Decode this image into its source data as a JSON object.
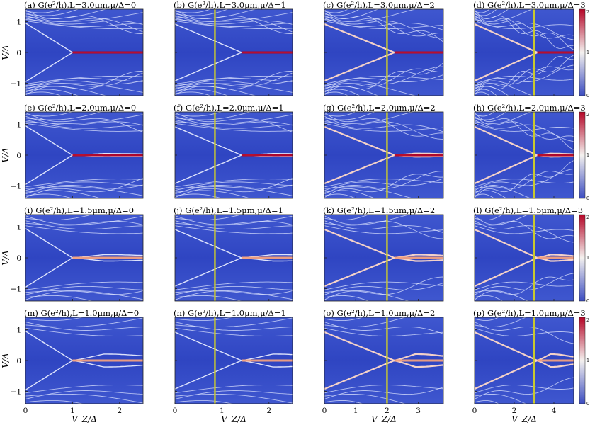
{
  "figure": {
    "ylabel": "V/Δ",
    "xlabel": "V_Z/Δ",
    "colors": {
      "low": "#3b4cc0",
      "mid": "#f4f1ef",
      "high": "#b40426",
      "marker": "#c8c830"
    }
  },
  "chart_data": [
    {
      "type": "heatmap",
      "title": "(a) G(e²/h),L=3.0μm,μ/Δ=0",
      "L_um": 3.0,
      "mu": 0,
      "xlim": [
        0,
        2.5
      ],
      "ylim": [
        -1.4,
        1.4
      ],
      "xticks": [
        0,
        1,
        2
      ],
      "yticks": [
        -1,
        0,
        1
      ],
      "marker_vz": null,
      "colorbar": null
    },
    {
      "type": "heatmap",
      "title": "(b) G(e²/h),L=3.0μm,μ/Δ=1",
      "L_um": 3.0,
      "mu": 1,
      "xlim": [
        0,
        2.5
      ],
      "ylim": [
        -1.4,
        1.4
      ],
      "xticks": [
        0,
        1,
        2
      ],
      "yticks": [
        -1,
        0,
        1
      ],
      "marker_vz": 0.85,
      "colorbar": null
    },
    {
      "type": "heatmap",
      "title": "(c) G(e²/h),L=3.0μm,μ/Δ=2",
      "L_um": 3.0,
      "mu": 2,
      "xlim": [
        0,
        3.8
      ],
      "ylim": [
        -1.4,
        1.4
      ],
      "xticks": [
        0,
        1,
        2,
        3
      ],
      "yticks": [
        -1,
        0,
        1
      ],
      "marker_vz": 2.0,
      "colorbar": null
    },
    {
      "type": "heatmap",
      "title": "(d) G(e²/h),L=3.0μm,μ/Δ=3",
      "L_um": 3.0,
      "mu": 3,
      "xlim": [
        0,
        5
      ],
      "ylim": [
        -1.4,
        1.4
      ],
      "xticks": [
        0,
        2,
        4
      ],
      "yticks": [
        -1,
        0,
        1
      ],
      "marker_vz": 3.0,
      "colorbar": {
        "range": [
          0,
          2
        ],
        "ticks": [
          "0",
          "1",
          "2"
        ]
      }
    },
    {
      "type": "heatmap",
      "title": "(e) G(e²/h),L=2.0μm,μ/Δ=0",
      "L_um": 2.0,
      "mu": 0,
      "xlim": [
        0,
        2.5
      ],
      "ylim": [
        -1.4,
        1.4
      ],
      "xticks": [
        0,
        1,
        2
      ],
      "yticks": [
        -1,
        0,
        1
      ],
      "marker_vz": null,
      "colorbar": null
    },
    {
      "type": "heatmap",
      "title": "(f) G(e²/h),L=2.0μm,μ/Δ=1",
      "L_um": 2.0,
      "mu": 1,
      "xlim": [
        0,
        2.5
      ],
      "ylim": [
        -1.4,
        1.4
      ],
      "xticks": [
        0,
        1,
        2
      ],
      "yticks": [
        -1,
        0,
        1
      ],
      "marker_vz": 0.85,
      "colorbar": null
    },
    {
      "type": "heatmap",
      "title": "(g) G(e²/h),L=2.0μm,μ/Δ=2",
      "L_um": 2.0,
      "mu": 2,
      "xlim": [
        0,
        3.8
      ],
      "ylim": [
        -1.4,
        1.4
      ],
      "xticks": [
        0,
        1,
        2,
        3
      ],
      "yticks": [
        -1,
        0,
        1
      ],
      "marker_vz": 2.0,
      "colorbar": null
    },
    {
      "type": "heatmap",
      "title": "(h) G(e²/h),L=2.0μm,μ/Δ=3",
      "L_um": 2.0,
      "mu": 3,
      "xlim": [
        0,
        5
      ],
      "ylim": [
        -1.4,
        1.4
      ],
      "xticks": [
        0,
        2,
        4
      ],
      "yticks": [
        -1,
        0,
        1
      ],
      "marker_vz": 3.0,
      "colorbar": {
        "range": [
          0,
          2
        ],
        "ticks": [
          "0",
          "1",
          "2"
        ]
      }
    },
    {
      "type": "heatmap",
      "title": "(i) G(e²/h),L=1.5μm,μ/Δ=0",
      "L_um": 1.5,
      "mu": 0,
      "xlim": [
        0,
        2.5
      ],
      "ylim": [
        -1.4,
        1.4
      ],
      "xticks": [
        0,
        1,
        2
      ],
      "yticks": [
        -1,
        0,
        1
      ],
      "marker_vz": null,
      "colorbar": null
    },
    {
      "type": "heatmap",
      "title": "(j) G(e²/h),L=1.5μm,μ/Δ=1",
      "L_um": 1.5,
      "mu": 1,
      "xlim": [
        0,
        2.5
      ],
      "ylim": [
        -1.4,
        1.4
      ],
      "xticks": [
        0,
        1,
        2
      ],
      "yticks": [
        -1,
        0,
        1
      ],
      "marker_vz": 0.85,
      "colorbar": null
    },
    {
      "type": "heatmap",
      "title": "(k) G(e²/h),L=1.5μm,μ/Δ=2",
      "L_um": 1.5,
      "mu": 2,
      "xlim": [
        0,
        3.8
      ],
      "ylim": [
        -1.4,
        1.4
      ],
      "xticks": [
        0,
        1,
        2,
        3
      ],
      "yticks": [
        -1,
        0,
        1
      ],
      "marker_vz": 2.0,
      "colorbar": null
    },
    {
      "type": "heatmap",
      "title": "(l) G(e²/h),L=1.5μm,μ/Δ=3",
      "L_um": 1.5,
      "mu": 3,
      "xlim": [
        0,
        5
      ],
      "ylim": [
        -1.4,
        1.4
      ],
      "xticks": [
        0,
        2,
        4
      ],
      "yticks": [
        -1,
        0,
        1
      ],
      "marker_vz": 3.0,
      "colorbar": {
        "range": [
          0,
          2
        ],
        "ticks": [
          "0",
          "1",
          "2"
        ]
      }
    },
    {
      "type": "heatmap",
      "title": "(m) G(e²/h),L=1.0μm,μ/Δ=0",
      "L_um": 1.0,
      "mu": 0,
      "xlim": [
        0,
        2.5
      ],
      "ylim": [
        -1.4,
        1.4
      ],
      "xticks": [
        0,
        1,
        2
      ],
      "yticks": [
        -1,
        0,
        1
      ],
      "marker_vz": null,
      "colorbar": null
    },
    {
      "type": "heatmap",
      "title": "(n) G(e²/h),L=1.0μm,μ/Δ=1",
      "L_um": 1.0,
      "mu": 1,
      "xlim": [
        0,
        2.5
      ],
      "ylim": [
        -1.4,
        1.4
      ],
      "xticks": [
        0,
        1,
        2
      ],
      "yticks": [
        -1,
        0,
        1
      ],
      "marker_vz": 0.85,
      "colorbar": null
    },
    {
      "type": "heatmap",
      "title": "(o) G(e²/h),L=1.0μm,μ/Δ=2",
      "L_um": 1.0,
      "mu": 2,
      "xlim": [
        0,
        3.8
      ],
      "ylim": [
        -1.4,
        1.4
      ],
      "xticks": [
        0,
        1,
        2,
        3
      ],
      "yticks": [
        -1,
        0,
        1
      ],
      "marker_vz": 2.0,
      "colorbar": null
    },
    {
      "type": "heatmap",
      "title": "(p) G(e²/h),L=1.0μm,μ/Δ=3",
      "L_um": 1.0,
      "mu": 3,
      "xlim": [
        0,
        5
      ],
      "ylim": [
        -1.4,
        1.4
      ],
      "xticks": [
        0,
        2,
        4
      ],
      "yticks": [
        -1,
        0,
        1
      ],
      "marker_vz": 3.0,
      "colorbar": {
        "range": [
          0,
          2
        ],
        "ticks": [
          "0",
          "1",
          "2"
        ]
      }
    }
  ]
}
